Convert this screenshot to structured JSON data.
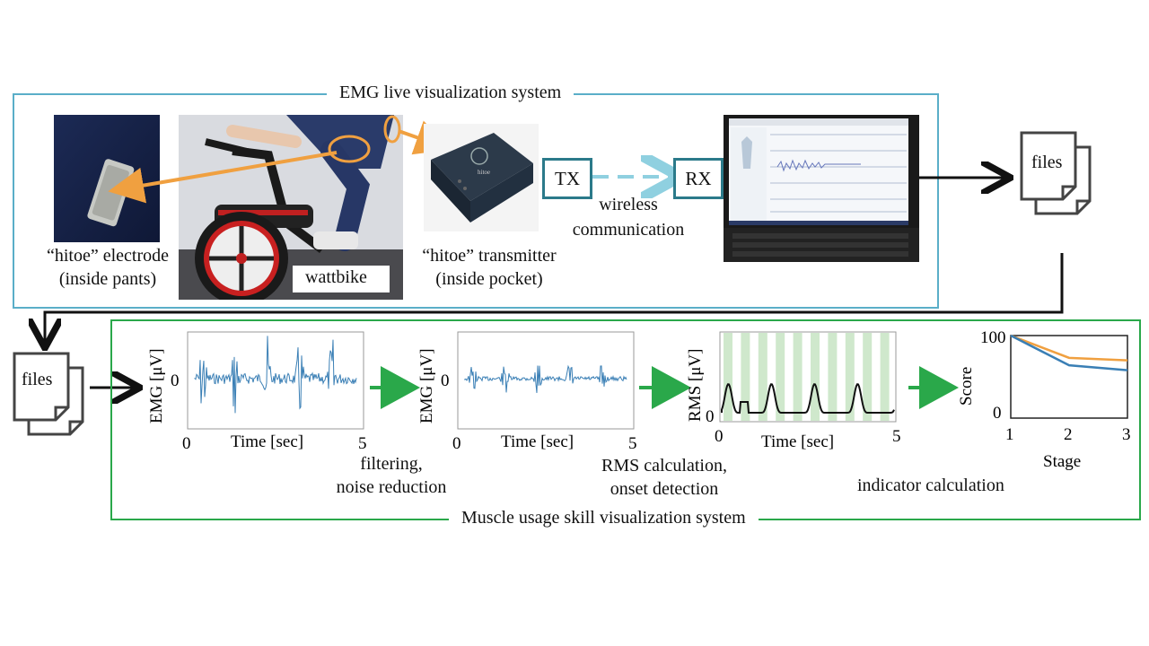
{
  "live_system": {
    "title": "EMG live visualization system",
    "electrode_label_1": "“hitoe” electrode",
    "electrode_label_2": "(inside pants)",
    "bike_label": "wattbike",
    "transmitter_label_1": "“hitoe” transmitter",
    "transmitter_label_2": "(inside pocket)",
    "tx": "TX",
    "rx": "RX",
    "wireless_1": "wireless",
    "wireless_2": "communication",
    "device_brand": "hitoe"
  },
  "files_top": "files",
  "files_bottom": "files",
  "skill_system": {
    "title": "Muscle usage skill visualization system",
    "step1_1": "filtering,",
    "step1_2": "noise reduction",
    "step2_1": "RMS calculation,",
    "step2_2": "onset detection",
    "step3": "indicator calculation"
  },
  "charts": {
    "raw": {
      "ylabel": "EMG [μV]",
      "xlabel": "Time [sec]",
      "y0": "0",
      "x0": "0",
      "x1": "5"
    },
    "filtered": {
      "ylabel": "EMG [μV]",
      "xlabel": "Time [sec]",
      "y0": "0",
      "x0": "0",
      "x1": "5"
    },
    "rms": {
      "ylabel": "RMS [μV]",
      "xlabel": "Time [sec]",
      "y0": "0",
      "x0": "0",
      "x1": "5"
    },
    "score": {
      "ylabel": "Score",
      "xlabel": "Stage",
      "ymax": "100",
      "y0": "0",
      "x0": "1",
      "x1": "2",
      "x2": "3"
    }
  },
  "chart_data": {
    "type": "line",
    "x": [
      1,
      2,
      3
    ],
    "series": [
      {
        "values": [
          100,
          73,
          70
        ],
        "color": "#f0a040"
      },
      {
        "values": [
          100,
          64,
          58
        ],
        "color": "#3a7fb5"
      }
    ],
    "xlabel": "Stage",
    "ylabel": "Score",
    "ylim": [
      0,
      100
    ],
    "xlim": [
      1,
      3
    ]
  },
  "colors": {
    "live_frame": "#5aaec8",
    "skill_frame": "#2aa84a",
    "orange": "#f0a040",
    "emg_blue": "#3a7fb5",
    "rms_band": "#cfe8cc",
    "wireless": "#8fd0e0"
  }
}
